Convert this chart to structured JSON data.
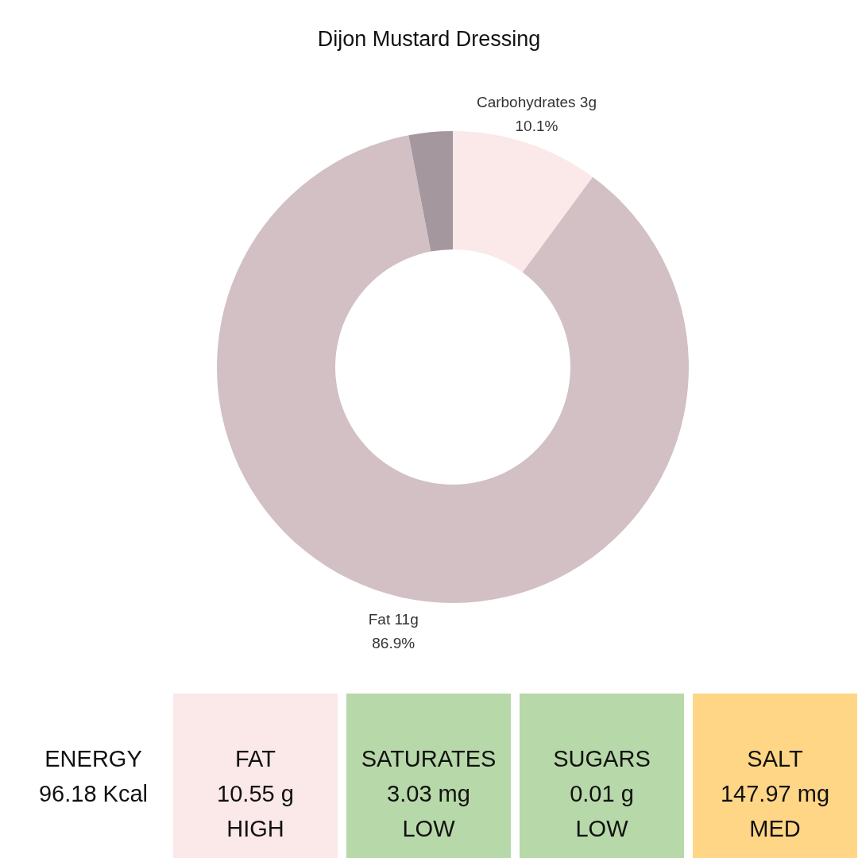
{
  "chart_data": [
    {
      "type": "donut",
      "title": "Dijon Mustard Dressing",
      "categories": [
        "Carbohydrates 3g",
        "Fat 11g",
        null
      ],
      "values": [
        10.1,
        86.9,
        3.0
      ],
      "colors": [
        "#fbe8e8",
        "#d2c0c4",
        "#a5979e"
      ],
      "value_labels": [
        "10.1%",
        "86.9%",
        null
      ]
    },
    {
      "type": "other",
      "annotations": [
        "ENERGY\n96.18 Kcal",
        "FAT\n10.55 g\nHIGH",
        "SATURATES\n3.03 mg\nLOW",
        "SUGARS\n0.01 g\nLOW",
        "SALT\n147.97 mg\nMED"
      ],
      "colors": [
        null,
        "#fbe8e8",
        "#b7d8a8",
        "#b7d8a8",
        "#fed686"
      ]
    }
  ]
}
